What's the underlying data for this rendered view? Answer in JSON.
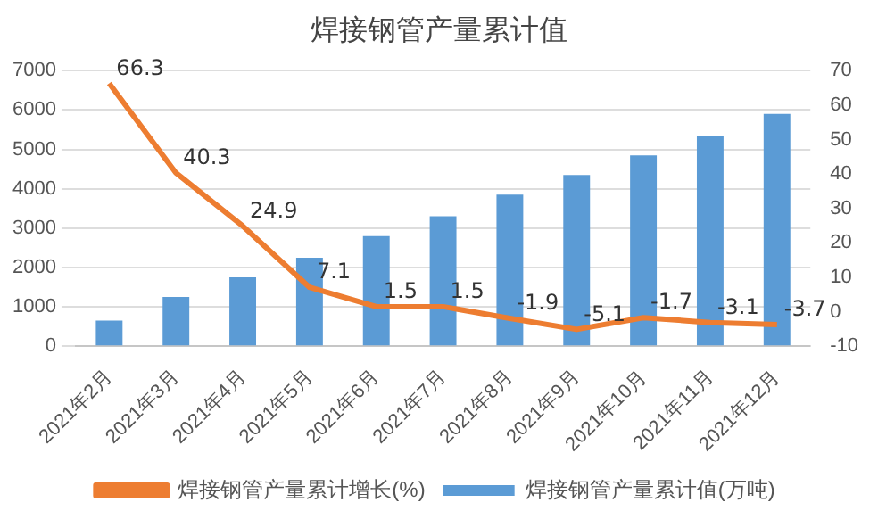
{
  "chart_data": {
    "type": "bar",
    "title": "焊接钢管产量累计值",
    "categories": [
      "2021年2月",
      "2021年3月",
      "2021年4月",
      "2021年5月",
      "2021年6月",
      "2021年7月",
      "2021年8月",
      "2021年9月",
      "2021年10月",
      "2021年11月",
      "2021年12月"
    ],
    "series": [
      {
        "name": "焊接钢管产量累计值(万吨)",
        "color": "#5b9bd5",
        "values": [
          650,
          1250,
          1750,
          2250,
          2800,
          3300,
          3850,
          4350,
          4850,
          5350,
          5900
        ]
      },
      {
        "name": "焊接钢管产量累计增长(%)",
        "type": "line",
        "axis": "y2",
        "color": "#ed7d31",
        "data_labels": true,
        "values": [
          66.3,
          40.3,
          24.9,
          7.1,
          1.5,
          1.5,
          -1.9,
          -5.1,
          -1.7,
          -3.1,
          -3.7
        ]
      }
    ],
    "ylim": [
      0,
      7000
    ],
    "yticks": [
      0,
      1000,
      2000,
      3000,
      4000,
      5000,
      6000,
      7000
    ],
    "y2lim": [
      -10,
      70
    ],
    "y2ticks": [
      -10,
      0,
      10,
      20,
      30,
      40,
      50,
      60,
      70
    ],
    "grid": "y",
    "legend": "bottom",
    "marker": "none"
  }
}
